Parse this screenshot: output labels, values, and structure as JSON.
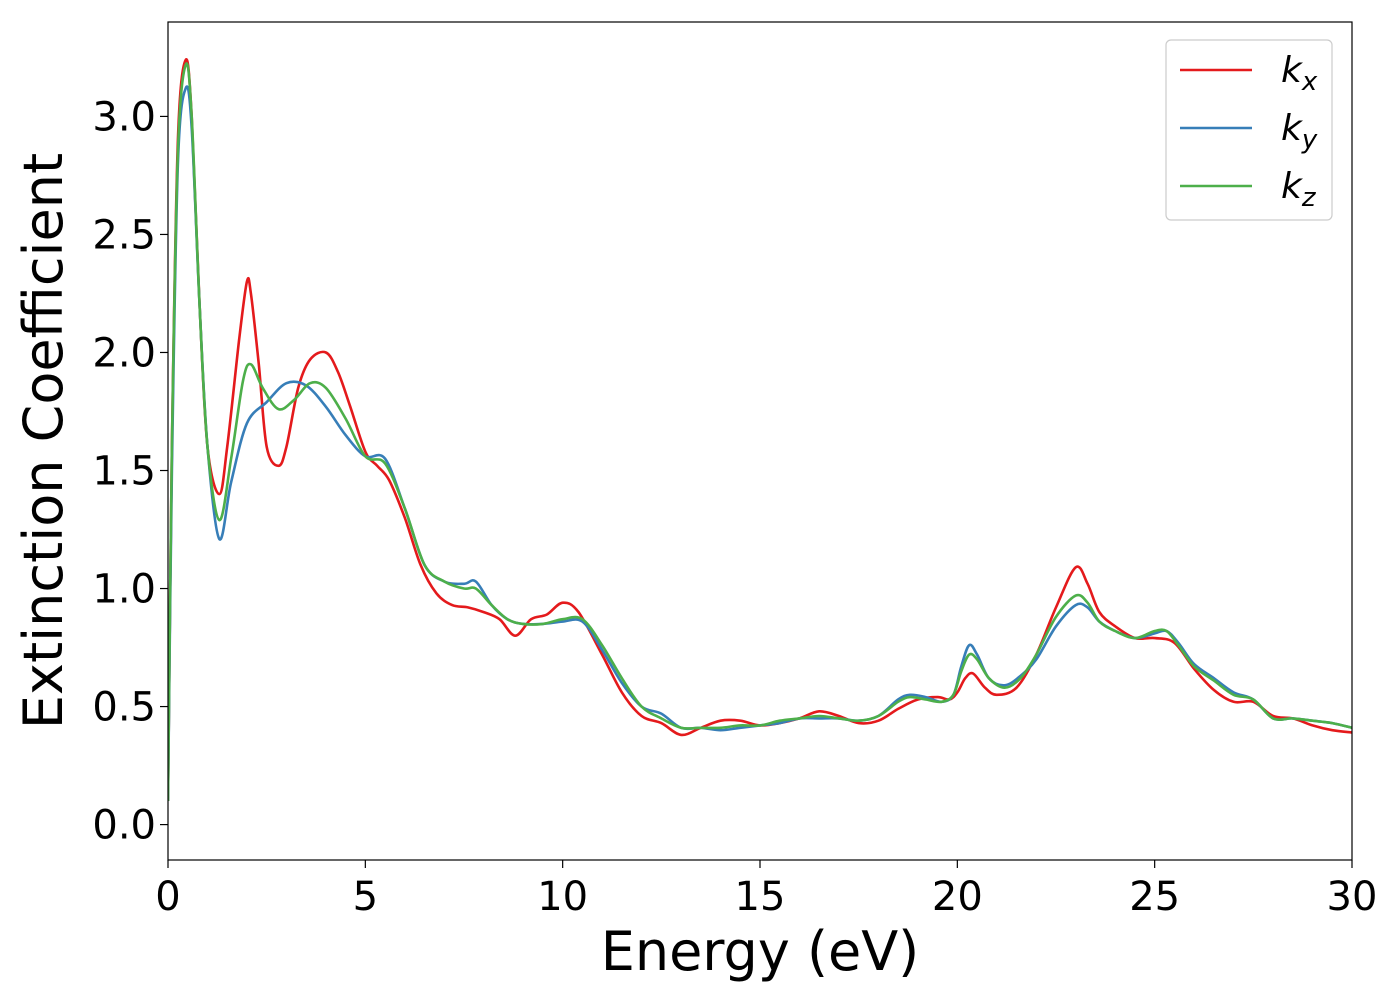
{
  "chart_data": {
    "type": "line",
    "title": "",
    "xlabel": "Energy (eV)",
    "ylabel": "Extinction Coefficient",
    "xlim": [
      0,
      30
    ],
    "ylim": [
      -0.15,
      3.4
    ],
    "xticks": [
      0,
      5,
      10,
      15,
      20,
      25,
      30
    ],
    "xtick_labels": [
      "0",
      "5",
      "10",
      "15",
      "20",
      "25",
      "30"
    ],
    "yticks": [
      0.0,
      0.5,
      1.0,
      1.5,
      2.0,
      2.5,
      3.0
    ],
    "ytick_labels": [
      "0.0",
      "0.5",
      "1.0",
      "1.5",
      "2.0",
      "2.5",
      "3.0"
    ],
    "grid": false,
    "legend_position": "top-right",
    "series": [
      {
        "name": "k",
        "subscript": "x",
        "color": "#e41a1c",
        "x": [
          0,
          0.1,
          0.25,
          0.45,
          0.6,
          0.8,
          1.0,
          1.3,
          1.5,
          1.8,
          2.0,
          2.1,
          2.3,
          2.5,
          2.8,
          3.0,
          3.3,
          3.6,
          4.0,
          4.3,
          4.6,
          5.0,
          5.3,
          5.6,
          6.0,
          6.4,
          6.8,
          7.2,
          7.6,
          8.0,
          8.4,
          8.8,
          9.2,
          9.6,
          10.0,
          10.4,
          11.0,
          11.5,
          12.0,
          12.5,
          13.0,
          13.5,
          14.0,
          14.5,
          15.0,
          15.5,
          16.0,
          16.5,
          17.0,
          17.5,
          18.0,
          18.5,
          19.0,
          19.5,
          19.8,
          20.0,
          20.2,
          20.4,
          20.7,
          21.0,
          21.5,
          22.0,
          22.5,
          23.0,
          23.3,
          23.6,
          24.0,
          24.5,
          25.0,
          25.5,
          26.0,
          26.5,
          27.0,
          27.5,
          28.0,
          28.5,
          29.0,
          29.5,
          30.0
        ],
        "values": [
          0.1,
          1.6,
          2.9,
          3.24,
          3.0,
          2.2,
          1.6,
          1.4,
          1.6,
          2.05,
          2.3,
          2.25,
          1.95,
          1.6,
          1.52,
          1.6,
          1.85,
          1.97,
          2.0,
          1.92,
          1.78,
          1.58,
          1.52,
          1.46,
          1.3,
          1.1,
          0.98,
          0.93,
          0.92,
          0.9,
          0.87,
          0.8,
          0.87,
          0.89,
          0.94,
          0.9,
          0.72,
          0.56,
          0.46,
          0.43,
          0.38,
          0.41,
          0.44,
          0.44,
          0.42,
          0.43,
          0.45,
          0.48,
          0.46,
          0.43,
          0.44,
          0.49,
          0.53,
          0.54,
          0.53,
          0.56,
          0.62,
          0.64,
          0.58,
          0.55,
          0.58,
          0.72,
          0.92,
          1.09,
          1.02,
          0.9,
          0.84,
          0.79,
          0.79,
          0.77,
          0.66,
          0.57,
          0.52,
          0.52,
          0.46,
          0.45,
          0.42,
          0.4,
          0.39
        ]
      },
      {
        "name": "k",
        "subscript": "y",
        "color": "#377eb8",
        "x": [
          0,
          0.1,
          0.25,
          0.45,
          0.6,
          0.8,
          1.0,
          1.3,
          1.6,
          2.0,
          2.5,
          3.0,
          3.5,
          4.0,
          4.5,
          5.0,
          5.5,
          6.0,
          6.5,
          7.0,
          7.5,
          7.8,
          8.2,
          8.6,
          9.0,
          9.5,
          10.0,
          10.5,
          11.0,
          11.5,
          12.0,
          12.5,
          13.0,
          13.5,
          14.0,
          14.5,
          15.0,
          15.5,
          16.0,
          16.5,
          17.0,
          17.5,
          18.0,
          18.5,
          18.8,
          19.2,
          19.6,
          19.9,
          20.1,
          20.3,
          20.5,
          20.8,
          21.2,
          21.6,
          22.0,
          22.5,
          23.0,
          23.3,
          23.6,
          24.0,
          24.5,
          25.0,
          25.3,
          25.6,
          26.0,
          26.5,
          27.0,
          27.5,
          28.0,
          28.5,
          29.0,
          29.5,
          30.0
        ],
        "values": [
          0.1,
          1.5,
          2.8,
          3.12,
          2.95,
          2.2,
          1.6,
          1.21,
          1.45,
          1.7,
          1.79,
          1.87,
          1.86,
          1.77,
          1.65,
          1.56,
          1.55,
          1.34,
          1.1,
          1.03,
          1.02,
          1.03,
          0.93,
          0.87,
          0.85,
          0.85,
          0.86,
          0.86,
          0.74,
          0.6,
          0.5,
          0.47,
          0.41,
          0.41,
          0.4,
          0.41,
          0.42,
          0.43,
          0.45,
          0.45,
          0.45,
          0.44,
          0.46,
          0.53,
          0.55,
          0.54,
          0.52,
          0.55,
          0.67,
          0.76,
          0.72,
          0.62,
          0.59,
          0.63,
          0.7,
          0.84,
          0.93,
          0.92,
          0.86,
          0.82,
          0.79,
          0.81,
          0.82,
          0.77,
          0.68,
          0.62,
          0.56,
          0.53,
          0.45,
          0.45,
          0.44,
          0.43,
          0.41
        ]
      },
      {
        "name": "k",
        "subscript": "z",
        "color": "#4daf4a",
        "x": [
          0,
          0.1,
          0.25,
          0.45,
          0.6,
          0.8,
          1.0,
          1.3,
          1.6,
          1.9,
          2.1,
          2.4,
          2.8,
          3.2,
          3.6,
          4.0,
          4.5,
          5.0,
          5.5,
          6.0,
          6.5,
          7.0,
          7.5,
          7.8,
          8.2,
          8.6,
          9.0,
          9.5,
          10.0,
          10.5,
          11.0,
          11.5,
          12.0,
          12.5,
          13.0,
          13.5,
          14.0,
          14.5,
          15.0,
          15.5,
          16.0,
          16.5,
          17.0,
          17.5,
          18.0,
          18.5,
          18.8,
          19.2,
          19.6,
          19.9,
          20.1,
          20.3,
          20.5,
          20.8,
          21.2,
          21.6,
          22.0,
          22.5,
          23.0,
          23.3,
          23.6,
          24.0,
          24.5,
          25.0,
          25.3,
          25.6,
          26.0,
          26.5,
          27.0,
          27.5,
          28.0,
          28.5,
          29.0,
          29.5,
          30.0
        ],
        "values": [
          0.1,
          1.6,
          2.85,
          3.22,
          3.0,
          2.2,
          1.6,
          1.29,
          1.55,
          1.88,
          1.95,
          1.85,
          1.76,
          1.8,
          1.87,
          1.85,
          1.72,
          1.56,
          1.53,
          1.34,
          1.1,
          1.03,
          1.0,
          1.0,
          0.93,
          0.87,
          0.85,
          0.85,
          0.87,
          0.87,
          0.76,
          0.62,
          0.5,
          0.45,
          0.41,
          0.41,
          0.41,
          0.42,
          0.42,
          0.44,
          0.45,
          0.46,
          0.45,
          0.44,
          0.46,
          0.52,
          0.54,
          0.53,
          0.52,
          0.55,
          0.65,
          0.72,
          0.7,
          0.62,
          0.58,
          0.62,
          0.72,
          0.88,
          0.97,
          0.94,
          0.86,
          0.82,
          0.79,
          0.82,
          0.82,
          0.76,
          0.67,
          0.61,
          0.55,
          0.53,
          0.45,
          0.45,
          0.44,
          0.43,
          0.41
        ]
      }
    ]
  }
}
